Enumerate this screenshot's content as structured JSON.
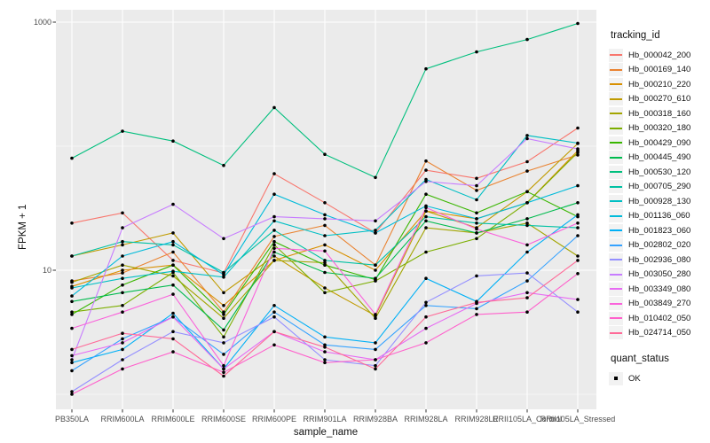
{
  "chart_data": {
    "type": "line",
    "title": "",
    "xlabel": "sample_name",
    "ylabel": "FPKM + 1",
    "y_scale": "log10",
    "ylim": [
      0.74,
      1250
    ],
    "y_major_ticks": [
      {
        "label": "1000",
        "value": 1000
      },
      {
        "label": "10",
        "value": 10
      }
    ],
    "y_minor_gridlines": [
      100,
      1
    ],
    "grid": "on",
    "panel_background": "#ebebeb",
    "gridline_color": "#ffffff",
    "point_color": "#000000",
    "legend_position": "right",
    "legend_title": "tracking_id",
    "quant_legend": {
      "title": "quant_status",
      "items": [
        {
          "label": "OK"
        }
      ]
    },
    "categories": [
      "PB350LA",
      "RRIM600LA",
      "RRIM600LE",
      "RRIM600SE",
      "RRIM600PE",
      "RRIM901LA",
      "RRIM928BA",
      "RRIM928LA",
      "RRIM928LE",
      "RRII105LA_Control",
      "RRII105LA_Stressed"
    ],
    "series": [
      {
        "name": "Hb_000042_200",
        "color": "#F8766D",
        "values": [
          24,
          29,
          12,
          9.5,
          60,
          35,
          20,
          64,
          55,
          75,
          140
        ]
      },
      {
        "name": "Hb_000169_140",
        "color": "#EA8331",
        "values": [
          8.2,
          9.5,
          14,
          4.6,
          18.7,
          23,
          11,
          76,
          44,
          63,
          85
        ]
      },
      {
        "name": "Hb_000210_220",
        "color": "#D89000",
        "values": [
          7.4,
          10,
          11,
          5.2,
          12,
          16,
          10,
          30,
          26,
          35,
          92
        ]
      },
      {
        "name": "Hb_000270_610",
        "color": "#C09B00",
        "values": [
          13,
          16,
          20,
          6.6,
          13,
          7.2,
          4.3,
          30,
          22,
          43,
          105
        ]
      },
      {
        "name": "Hb_000318_160",
        "color": "#A3A500",
        "values": [
          8,
          11,
          9,
          4.1,
          12,
          11.5,
          4.1,
          22,
          20,
          24,
          13
        ]
      },
      {
        "name": "Hb_000320_180",
        "color": "#7CAE00",
        "values": [
          4.6,
          5.2,
          9.6,
          2.9,
          16,
          6.6,
          8.2,
          14,
          18,
          35,
          89
        ]
      },
      {
        "name": "Hb_000429_090",
        "color": "#39B600",
        "values": [
          4.4,
          7.6,
          11,
          4.4,
          17,
          11,
          8.4,
          41,
          29,
          43,
          27
        ]
      },
      {
        "name": "Hb_000445_490",
        "color": "#00BB4E",
        "values": [
          5.6,
          6.6,
          7.6,
          3.3,
          14,
          9.6,
          8.6,
          25,
          20,
          26,
          35
        ]
      },
      {
        "name": "Hb_000530_120",
        "color": "#00BF7D",
        "values": [
          80,
          132,
          110,
          70,
          205,
          86,
          56,
          420,
          575,
          725,
          975
        ]
      },
      {
        "name": "Hb_000705_290",
        "color": "#00C1A3",
        "values": [
          13,
          17,
          16,
          9.6,
          21,
          12,
          11,
          27,
          24,
          23,
          22
        ]
      },
      {
        "name": "Hb_000928_130",
        "color": "#00BFC4",
        "values": [
          7.2,
          8.6,
          9.8,
          8.8,
          25,
          19,
          21,
          54,
          37,
          122,
          106
        ]
      },
      {
        "name": "Hb_001136_060",
        "color": "#00BBDA",
        "values": [
          6.2,
          13,
          17,
          9.2,
          41,
          28,
          20,
          33,
          26,
          35,
          48
        ]
      },
      {
        "name": "Hb_001823_060",
        "color": "#00B0F6",
        "values": [
          1.8,
          2.3,
          4.5,
          1.6,
          5.2,
          2.9,
          2.6,
          8.6,
          5.6,
          14,
          28
        ]
      },
      {
        "name": "Hb_002802_020",
        "color": "#35A2FF",
        "values": [
          1.55,
          2.8,
          4.2,
          2.1,
          4.6,
          2.5,
          2.3,
          5.2,
          4.9,
          8.2,
          19
        ]
      },
      {
        "name": "Hb_002936_080",
        "color": "#9590FF",
        "values": [
          1.05,
          1.9,
          3.2,
          2.6,
          4.2,
          1.9,
          1.7,
          5.5,
          9,
          9.5,
          4.6
        ]
      },
      {
        "name": "Hb_003050_280",
        "color": "#C77CFF",
        "values": [
          1.9,
          22,
          34,
          18,
          27,
          26,
          25,
          52,
          48,
          115,
          95
        ]
      },
      {
        "name": "Hb_003349_080",
        "color": "#E76BF3",
        "values": [
          2.05,
          2.6,
          4.2,
          1.6,
          3.2,
          2.2,
          1.9,
          3.4,
          5.4,
          6.6,
          5.8
        ]
      },
      {
        "name": "Hb_003849_270",
        "color": "#FA62DB",
        "values": [
          3.4,
          4.6,
          6.4,
          1.7,
          15,
          14.3,
          4.4,
          32,
          21.5,
          16,
          24
        ]
      },
      {
        "name": "Hb_010402_050",
        "color": "#FF61CC",
        "values": [
          1.0,
          1.6,
          2.2,
          1.5,
          2.5,
          1.8,
          1.9,
          2.6,
          4.4,
          4.6,
          9.4
        ]
      },
      {
        "name": "Hb_024714_050",
        "color": "#FF6A98",
        "values": [
          2.3,
          3.1,
          2.8,
          1.4,
          3.2,
          2.4,
          1.6,
          4.2,
          5.5,
          6,
          12
        ]
      }
    ]
  }
}
